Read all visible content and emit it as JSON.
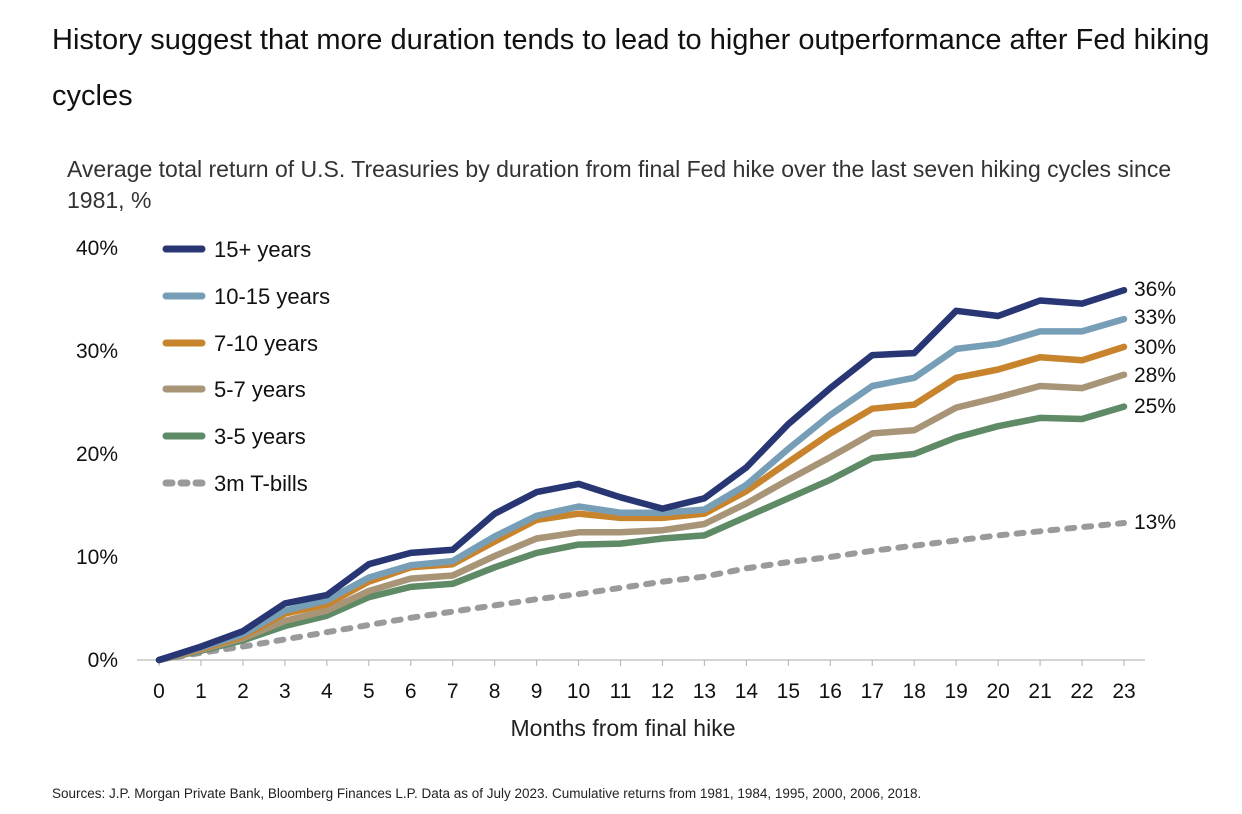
{
  "title": "History suggest that more duration tends to lead to higher outperformance after Fed hiking cycles",
  "source": "Sources: J.P. Morgan Private Bank, Bloomberg Finances L.P. Data as of July 2023. Cumulative returns from 1981, 1984, 1995, 2000, 2006, 2018.",
  "chart_data": {
    "type": "line",
    "title": "Average total return of U.S. Treasuries by duration from final Fed hike over the last seven hiking cycles since 1981, %",
    "xlabel": "Months from final hike",
    "ylabel": "",
    "x": [
      0,
      1,
      2,
      3,
      4,
      5,
      6,
      7,
      8,
      9,
      10,
      11,
      12,
      13,
      14,
      15,
      16,
      17,
      18,
      19,
      20,
      21,
      22,
      23
    ],
    "xlim": [
      0,
      23
    ],
    "ylim": [
      0,
      40
    ],
    "yticks": [
      0,
      10,
      20,
      30,
      40
    ],
    "ytick_labels": [
      "0%",
      "10%",
      "20%",
      "30%",
      "40%"
    ],
    "legend_position": "top-left",
    "series": [
      {
        "name": "15+ years",
        "color": "#283674",
        "dashed": false,
        "end_label": "36%",
        "values": [
          0,
          1.3,
          2.8,
          5.5,
          6.3,
          9.3,
          10.4,
          10.7,
          14.2,
          16.3,
          17.1,
          15.8,
          14.7,
          15.7,
          18.7,
          22.9,
          26.4,
          29.6,
          29.8,
          33.9,
          33.4,
          34.9,
          34.6,
          35.9
        ]
      },
      {
        "name": "10-15 years",
        "color": "#779eb7",
        "dashed": false,
        "end_label": "33%",
        "values": [
          0,
          1.2,
          2.5,
          4.8,
          5.8,
          8.0,
          9.2,
          9.6,
          12.0,
          14.0,
          14.9,
          14.3,
          14.3,
          14.6,
          17.0,
          20.5,
          23.8,
          26.6,
          27.4,
          30.2,
          30.7,
          31.9,
          31.9,
          33.1
        ]
      },
      {
        "name": "7-10 years",
        "color": "#c8842d",
        "dashed": false,
        "end_label": "30%",
        "values": [
          0,
          1.1,
          2.3,
          4.5,
          5.4,
          7.6,
          9.0,
          9.3,
          11.5,
          13.6,
          14.2,
          13.8,
          13.8,
          14.2,
          16.4,
          19.2,
          22.0,
          24.4,
          24.8,
          27.4,
          28.2,
          29.4,
          29.1,
          30.4
        ]
      },
      {
        "name": "5-7 years",
        "color": "#a89477",
        "dashed": false,
        "end_label": "28%",
        "values": [
          0,
          1.0,
          2.1,
          3.8,
          4.8,
          6.7,
          7.9,
          8.2,
          10.1,
          11.8,
          12.4,
          12.4,
          12.6,
          13.2,
          15.2,
          17.5,
          19.7,
          22.0,
          22.3,
          24.5,
          25.5,
          26.6,
          26.4,
          27.7
        ]
      },
      {
        "name": "3-5 years",
        "color": "#5f8a66",
        "dashed": false,
        "end_label": "25%",
        "values": [
          0,
          0.9,
          1.9,
          3.3,
          4.3,
          6.1,
          7.1,
          7.4,
          9.0,
          10.4,
          11.2,
          11.3,
          11.8,
          12.1,
          13.9,
          15.7,
          17.5,
          19.6,
          20.0,
          21.6,
          22.7,
          23.5,
          23.4,
          24.6
        ]
      },
      {
        "name": "3m T-bills",
        "color": "#9a9a9c",
        "dashed": true,
        "end_label": "13%",
        "values": [
          0,
          0.7,
          1.3,
          2.0,
          2.7,
          3.4,
          4.1,
          4.7,
          5.3,
          5.9,
          6.4,
          7.0,
          7.6,
          8.1,
          8.9,
          9.5,
          10.0,
          10.6,
          11.1,
          11.6,
          12.1,
          12.5,
          12.9,
          13.3
        ]
      }
    ]
  }
}
